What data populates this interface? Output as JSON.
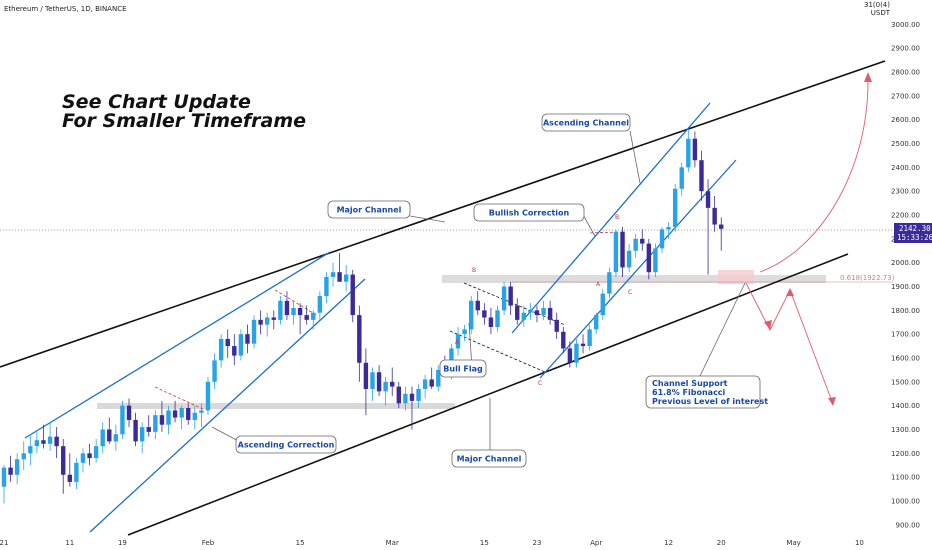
{
  "header": {
    "symbol": "Ethereum / TetherUS, 1D, BINANCE",
    "currency_lines": [
      "31(0(4)",
      "USDT"
    ]
  },
  "note": {
    "line1": "See Chart Update",
    "line2": "For Smaller Timeframe"
  },
  "price_tag": {
    "price": "2142.30",
    "countdown": "15:33:26"
  },
  "fib_label": "0.618(1922.73)",
  "callouts": {
    "ascending_channel": "Ascending Channel",
    "major_channel_top": "Major Channel",
    "bullish_correction": "Bullish Correction",
    "bull_flag": "Bull Flag",
    "ascending_correction": "Ascending Correction",
    "major_channel_bottom": "Major Channel",
    "channel_support": [
      "Channel Support",
      "61.8% Fibonacci",
      "Previous Level of interest"
    ]
  },
  "wave_labels": {
    "flag": [
      "A",
      "B",
      "C"
    ],
    "recent": [
      "A",
      "B",
      "C"
    ]
  },
  "colors": {
    "bull": "#29a3e8",
    "bear": "#3a2a9a",
    "channel_blue": "#1a6fd0",
    "major_black": "#111111",
    "projection": "#e05c6c",
    "zone": "#d0d0d0",
    "fib_zone": "#f5c9d1"
  },
  "chart_data": {
    "type": "candlestick",
    "symbol": "ETH/USDT",
    "timeframe": "1D",
    "exchange": "BINANCE",
    "y_axis": {
      "ticks": [
        900,
        1000,
        1100,
        1200,
        1300,
        1400,
        1500,
        1600,
        1700,
        1800,
        1900,
        2000,
        2100,
        2200,
        2300,
        2400,
        2500,
        2600,
        2700,
        2800,
        2900,
        3000
      ],
      "tick_labels": [
        "900.00",
        "1000.00",
        "1100.00",
        "1200.00",
        "1300.00",
        "1400.00",
        "1500.00",
        "1600.00",
        "1700.00",
        "1800.00",
        "1900.00",
        "2000.00",
        "2100.00",
        "2200.00",
        "2300.00",
        "2400.00",
        "2500.00",
        "2600.00",
        "2700.00",
        "2800.00",
        "2900.00",
        "3000.00"
      ],
      "range": [
        860,
        3110
      ]
    },
    "x_axis": {
      "labels": [
        "21",
        "11",
        "19",
        "Feb",
        "15",
        "Mar",
        "15",
        "23",
        "Apr",
        "12",
        "20",
        "May",
        "10"
      ],
      "label_days": [
        0,
        10,
        18,
        31,
        45,
        59,
        73,
        81,
        90,
        101,
        109,
        120,
        130
      ]
    },
    "candles": [
      {
        "d": 0,
        "o": 1060,
        "h": 1150,
        "l": 990,
        "c": 1140
      },
      {
        "d": 1,
        "o": 1140,
        "h": 1190,
        "l": 1080,
        "c": 1110
      },
      {
        "d": 2,
        "o": 1110,
        "h": 1200,
        "l": 1070,
        "c": 1175
      },
      {
        "d": 3,
        "o": 1175,
        "h": 1250,
        "l": 1130,
        "c": 1200
      },
      {
        "d": 4,
        "o": 1200,
        "h": 1280,
        "l": 1150,
        "c": 1230
      },
      {
        "d": 5,
        "o": 1230,
        "h": 1290,
        "l": 1200,
        "c": 1255
      },
      {
        "d": 6,
        "o": 1255,
        "h": 1320,
        "l": 1220,
        "c": 1240
      },
      {
        "d": 7,
        "o": 1240,
        "h": 1330,
        "l": 1210,
        "c": 1270
      },
      {
        "d": 8,
        "o": 1270,
        "h": 1310,
        "l": 1180,
        "c": 1230
      },
      {
        "d": 9,
        "o": 1230,
        "h": 1260,
        "l": 1030,
        "c": 1110
      },
      {
        "d": 10,
        "o": 1110,
        "h": 1200,
        "l": 1060,
        "c": 1080
      },
      {
        "d": 11,
        "o": 1080,
        "h": 1180,
        "l": 1050,
        "c": 1160
      },
      {
        "d": 12,
        "o": 1160,
        "h": 1220,
        "l": 1120,
        "c": 1200
      },
      {
        "d": 13,
        "o": 1200,
        "h": 1240,
        "l": 1150,
        "c": 1180
      },
      {
        "d": 14,
        "o": 1180,
        "h": 1260,
        "l": 1160,
        "c": 1230
      },
      {
        "d": 15,
        "o": 1230,
        "h": 1330,
        "l": 1200,
        "c": 1300
      },
      {
        "d": 16,
        "o": 1300,
        "h": 1350,
        "l": 1240,
        "c": 1250
      },
      {
        "d": 17,
        "o": 1250,
        "h": 1320,
        "l": 1210,
        "c": 1280
      },
      {
        "d": 18,
        "o": 1280,
        "h": 1420,
        "l": 1260,
        "c": 1400
      },
      {
        "d": 19,
        "o": 1400,
        "h": 1430,
        "l": 1310,
        "c": 1340
      },
      {
        "d": 20,
        "o": 1340,
        "h": 1370,
        "l": 1230,
        "c": 1250
      },
      {
        "d": 21,
        "o": 1250,
        "h": 1330,
        "l": 1200,
        "c": 1310
      },
      {
        "d": 22,
        "o": 1310,
        "h": 1360,
        "l": 1270,
        "c": 1290
      },
      {
        "d": 23,
        "o": 1290,
        "h": 1380,
        "l": 1260,
        "c": 1360
      },
      {
        "d": 24,
        "o": 1360,
        "h": 1420,
        "l": 1290,
        "c": 1320
      },
      {
        "d": 25,
        "o": 1320,
        "h": 1400,
        "l": 1280,
        "c": 1380
      },
      {
        "d": 26,
        "o": 1380,
        "h": 1420,
        "l": 1330,
        "c": 1350
      },
      {
        "d": 27,
        "o": 1350,
        "h": 1400,
        "l": 1300,
        "c": 1390
      },
      {
        "d": 28,
        "o": 1390,
        "h": 1410,
        "l": 1320,
        "c": 1340
      },
      {
        "d": 29,
        "o": 1340,
        "h": 1400,
        "l": 1300,
        "c": 1370
      },
      {
        "d": 30,
        "o": 1370,
        "h": 1410,
        "l": 1310,
        "c": 1380
      },
      {
        "d": 31,
        "o": 1380,
        "h": 1520,
        "l": 1360,
        "c": 1500
      },
      {
        "d": 32,
        "o": 1500,
        "h": 1620,
        "l": 1470,
        "c": 1590
      },
      {
        "d": 33,
        "o": 1590,
        "h": 1700,
        "l": 1560,
        "c": 1680
      },
      {
        "d": 34,
        "o": 1680,
        "h": 1720,
        "l": 1600,
        "c": 1650
      },
      {
        "d": 35,
        "o": 1650,
        "h": 1700,
        "l": 1570,
        "c": 1610
      },
      {
        "d": 36,
        "o": 1610,
        "h": 1720,
        "l": 1590,
        "c": 1700
      },
      {
        "d": 37,
        "o": 1700,
        "h": 1740,
        "l": 1620,
        "c": 1660
      },
      {
        "d": 38,
        "o": 1660,
        "h": 1780,
        "l": 1640,
        "c": 1760
      },
      {
        "d": 39,
        "o": 1760,
        "h": 1800,
        "l": 1700,
        "c": 1740
      },
      {
        "d": 40,
        "o": 1740,
        "h": 1790,
        "l": 1690,
        "c": 1770
      },
      {
        "d": 41,
        "o": 1770,
        "h": 1800,
        "l": 1720,
        "c": 1760
      },
      {
        "d": 42,
        "o": 1760,
        "h": 1860,
        "l": 1740,
        "c": 1840
      },
      {
        "d": 43,
        "o": 1840,
        "h": 1880,
        "l": 1760,
        "c": 1780
      },
      {
        "d": 44,
        "o": 1780,
        "h": 1840,
        "l": 1740,
        "c": 1810
      },
      {
        "d": 45,
        "o": 1810,
        "h": 1830,
        "l": 1700,
        "c": 1780
      },
      {
        "d": 46,
        "o": 1780,
        "h": 1820,
        "l": 1740,
        "c": 1760
      },
      {
        "d": 47,
        "o": 1760,
        "h": 1800,
        "l": 1720,
        "c": 1790
      },
      {
        "d": 48,
        "o": 1790,
        "h": 1880,
        "l": 1760,
        "c": 1860
      },
      {
        "d": 49,
        "o": 1860,
        "h": 1960,
        "l": 1830,
        "c": 1940
      },
      {
        "d": 50,
        "o": 1940,
        "h": 2000,
        "l": 1900,
        "c": 1960
      },
      {
        "d": 51,
        "o": 1960,
        "h": 2040,
        "l": 1920,
        "c": 1920
      },
      {
        "d": 52,
        "o": 1920,
        "h": 1990,
        "l": 1880,
        "c": 1950
      },
      {
        "d": 53,
        "o": 1950,
        "h": 1970,
        "l": 1750,
        "c": 1780
      },
      {
        "d": 54,
        "o": 1780,
        "h": 1820,
        "l": 1500,
        "c": 1580
      },
      {
        "d": 55,
        "o": 1580,
        "h": 1640,
        "l": 1360,
        "c": 1470
      },
      {
        "d": 56,
        "o": 1470,
        "h": 1560,
        "l": 1420,
        "c": 1540
      },
      {
        "d": 57,
        "o": 1540,
        "h": 1570,
        "l": 1440,
        "c": 1460
      },
      {
        "d": 58,
        "o": 1460,
        "h": 1520,
        "l": 1400,
        "c": 1500
      },
      {
        "d": 59,
        "o": 1500,
        "h": 1560,
        "l": 1440,
        "c": 1480
      },
      {
        "d": 60,
        "o": 1480,
        "h": 1500,
        "l": 1390,
        "c": 1410
      },
      {
        "d": 61,
        "o": 1410,
        "h": 1480,
        "l": 1380,
        "c": 1450
      },
      {
        "d": 62,
        "o": 1450,
        "h": 1480,
        "l": 1300,
        "c": 1420
      },
      {
        "d": 63,
        "o": 1420,
        "h": 1490,
        "l": 1390,
        "c": 1470
      },
      {
        "d": 64,
        "o": 1470,
        "h": 1530,
        "l": 1430,
        "c": 1510
      },
      {
        "d": 65,
        "o": 1510,
        "h": 1560,
        "l": 1470,
        "c": 1480
      },
      {
        "d": 66,
        "o": 1480,
        "h": 1570,
        "l": 1460,
        "c": 1550
      },
      {
        "d": 67,
        "o": 1550,
        "h": 1610,
        "l": 1520,
        "c": 1530
      },
      {
        "d": 68,
        "o": 1530,
        "h": 1660,
        "l": 1510,
        "c": 1640
      },
      {
        "d": 69,
        "o": 1640,
        "h": 1730,
        "l": 1610,
        "c": 1700
      },
      {
        "d": 70,
        "o": 1700,
        "h": 1740,
        "l": 1670,
        "c": 1720
      },
      {
        "d": 71,
        "o": 1720,
        "h": 1860,
        "l": 1700,
        "c": 1840
      },
      {
        "d": 72,
        "o": 1840,
        "h": 1880,
        "l": 1780,
        "c": 1800
      },
      {
        "d": 73,
        "o": 1800,
        "h": 1830,
        "l": 1740,
        "c": 1770
      },
      {
        "d": 74,
        "o": 1770,
        "h": 1810,
        "l": 1700,
        "c": 1730
      },
      {
        "d": 75,
        "o": 1730,
        "h": 1820,
        "l": 1710,
        "c": 1800
      },
      {
        "d": 76,
        "o": 1800,
        "h": 1920,
        "l": 1780,
        "c": 1900
      },
      {
        "d": 77,
        "o": 1900,
        "h": 1920,
        "l": 1780,
        "c": 1820
      },
      {
        "d": 78,
        "o": 1820,
        "h": 1850,
        "l": 1740,
        "c": 1760
      },
      {
        "d": 79,
        "o": 1760,
        "h": 1820,
        "l": 1730,
        "c": 1790
      },
      {
        "d": 80,
        "o": 1790,
        "h": 1830,
        "l": 1760,
        "c": 1800
      },
      {
        "d": 81,
        "o": 1800,
        "h": 1820,
        "l": 1750,
        "c": 1780
      },
      {
        "d": 82,
        "o": 1780,
        "h": 1840,
        "l": 1760,
        "c": 1810
      },
      {
        "d": 83,
        "o": 1810,
        "h": 1840,
        "l": 1740,
        "c": 1760
      },
      {
        "d": 84,
        "o": 1760,
        "h": 1790,
        "l": 1680,
        "c": 1710
      },
      {
        "d": 85,
        "o": 1710,
        "h": 1730,
        "l": 1620,
        "c": 1640
      },
      {
        "d": 86,
        "o": 1640,
        "h": 1670,
        "l": 1560,
        "c": 1580
      },
      {
        "d": 87,
        "o": 1580,
        "h": 1680,
        "l": 1560,
        "c": 1660
      },
      {
        "d": 88,
        "o": 1660,
        "h": 1700,
        "l": 1620,
        "c": 1650
      },
      {
        "d": 89,
        "o": 1650,
        "h": 1740,
        "l": 1630,
        "c": 1720
      },
      {
        "d": 90,
        "o": 1720,
        "h": 1790,
        "l": 1700,
        "c": 1780
      },
      {
        "d": 91,
        "o": 1780,
        "h": 1890,
        "l": 1760,
        "c": 1870
      },
      {
        "d": 92,
        "o": 1870,
        "h": 1980,
        "l": 1850,
        "c": 1960
      },
      {
        "d": 93,
        "o": 1960,
        "h": 2140,
        "l": 1940,
        "c": 2130
      },
      {
        "d": 94,
        "o": 2130,
        "h": 2150,
        "l": 1940,
        "c": 1980
      },
      {
        "d": 95,
        "o": 1980,
        "h": 2080,
        "l": 1960,
        "c": 2050
      },
      {
        "d": 96,
        "o": 2050,
        "h": 2120,
        "l": 2020,
        "c": 2100
      },
      {
        "d": 97,
        "o": 2100,
        "h": 2140,
        "l": 2050,
        "c": 2080
      },
      {
        "d": 98,
        "o": 2080,
        "h": 2100,
        "l": 1930,
        "c": 1960
      },
      {
        "d": 99,
        "o": 1960,
        "h": 2080,
        "l": 1940,
        "c": 2060
      },
      {
        "d": 100,
        "o": 2060,
        "h": 2150,
        "l": 2040,
        "c": 2140
      },
      {
        "d": 101,
        "o": 2140,
        "h": 2170,
        "l": 2100,
        "c": 2150
      },
      {
        "d": 102,
        "o": 2150,
        "h": 2330,
        "l": 2130,
        "c": 2310
      },
      {
        "d": 103,
        "o": 2310,
        "h": 2420,
        "l": 2280,
        "c": 2400
      },
      {
        "d": 104,
        "o": 2400,
        "h": 2560,
        "l": 2380,
        "c": 2520
      },
      {
        "d": 105,
        "o": 2520,
        "h": 2550,
        "l": 2400,
        "c": 2430
      },
      {
        "d": 106,
        "o": 2430,
        "h": 2470,
        "l": 2260,
        "c": 2300
      },
      {
        "d": 107,
        "o": 2300,
        "h": 2350,
        "l": 1950,
        "c": 2230
      },
      {
        "d": 108,
        "o": 2230,
        "h": 2280,
        "l": 2130,
        "c": 2160
      },
      {
        "d": 109,
        "o": 2160,
        "h": 2190,
        "l": 2050,
        "c": 2142
      }
    ]
  }
}
